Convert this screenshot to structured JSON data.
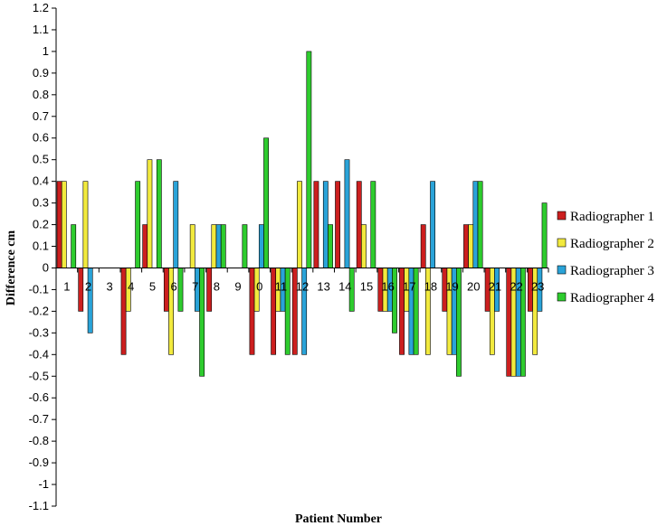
{
  "chart_data": {
    "type": "bar",
    "title": "",
    "xlabel": "Patient Number",
    "ylabel": "Difference cm",
    "ylim": [
      -1.1,
      1.2
    ],
    "y_ticks": [
      "1.2",
      "1.1",
      "1",
      "0.9",
      "0.8",
      "0.7",
      "0.6",
      "0.5",
      "0.4",
      "0.3",
      "0.2",
      "0.1",
      "0",
      "-0.1",
      "-0.2",
      "-0.3",
      "-0.4",
      "-0.5",
      "-0.6",
      "-0.7",
      "-0.8",
      "-0.9",
      "-1",
      "-1.1"
    ],
    "categories": [
      "1",
      "2",
      "3",
      "4",
      "5",
      "6",
      "7",
      "8",
      "9",
      "10",
      "11",
      "12",
      "13",
      "14",
      "15",
      "16",
      "17",
      "18",
      "19",
      "20",
      "21",
      "22",
      "23"
    ],
    "category_labels": [
      "1",
      "2",
      "3",
      "4",
      "5",
      "6",
      "7",
      "8",
      "9",
      "0",
      "11",
      "12",
      "13",
      "14",
      "15",
      "16",
      "17",
      "18",
      "19",
      "20",
      "21",
      "22",
      "23"
    ],
    "legend_position": "right",
    "grid": false,
    "series": [
      {
        "name": "Radiographer 1",
        "color": "#cc1f1f",
        "values": [
          0.4,
          -0.2,
          0,
          -0.4,
          0.2,
          -0.2,
          0,
          -0.2,
          0,
          -0.4,
          -0.4,
          -0.4,
          0.4,
          0.4,
          0.4,
          -0.2,
          -0.4,
          0.2,
          -0.2,
          0.2,
          -0.2,
          -0.5,
          -0.2
        ]
      },
      {
        "name": "Radiographer 2",
        "color": "#f2ea3e",
        "values": [
          0.4,
          0.4,
          0,
          -0.2,
          0.5,
          -0.4,
          0.2,
          0.2,
          0,
          -0.2,
          -0.2,
          0.4,
          0,
          0,
          0.2,
          -0.2,
          -0.2,
          -0.4,
          -0.4,
          0.2,
          -0.4,
          -0.5,
          -0.4
        ]
      },
      {
        "name": "Radiographer 3",
        "color": "#2aa3d8",
        "values": [
          0,
          -0.3,
          0,
          0,
          0,
          0.4,
          -0.2,
          0.2,
          0,
          0.2,
          -0.2,
          -0.4,
          0.4,
          0.5,
          0,
          -0.2,
          -0.4,
          0.4,
          -0.4,
          0.4,
          -0.2,
          -0.5,
          -0.2
        ]
      },
      {
        "name": "Radiographer 4",
        "color": "#2ecc2e",
        "values": [
          0.2,
          0,
          0,
          0.4,
          0.5,
          -0.2,
          -0.5,
          0.2,
          0.2,
          0.6,
          -0.4,
          1.0,
          0.2,
          -0.2,
          0.4,
          -0.3,
          -0.4,
          0,
          -0.5,
          0.4,
          0,
          -0.5,
          0.3
        ]
      }
    ]
  }
}
